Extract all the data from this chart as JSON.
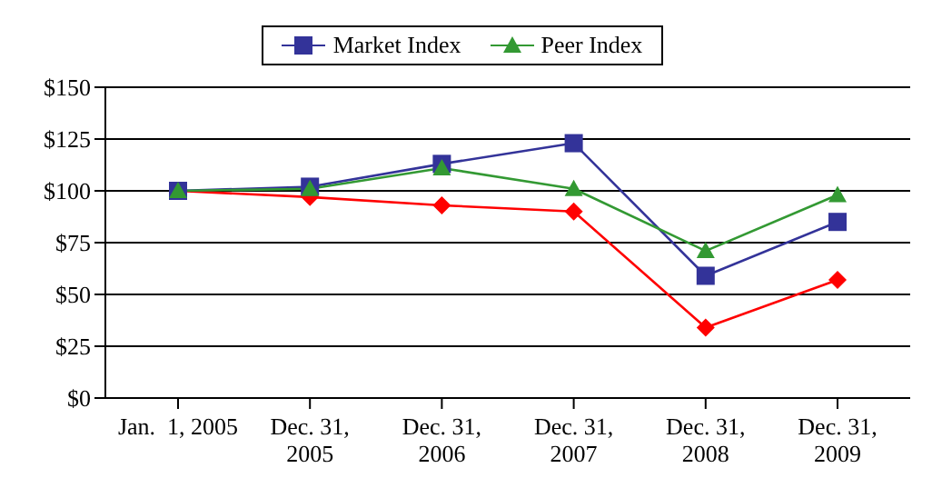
{
  "chart_data": {
    "type": "line",
    "categories": [
      "Jan.  1, 2005",
      "Dec. 31,\n2005",
      "Dec. 31,\n2006",
      "Dec. 31,\n2007",
      "Dec. 31,\n2008",
      "Dec. 31,\n2009"
    ],
    "series": [
      {
        "color": "#ff0000",
        "marker": "diamond",
        "values": [
          100,
          97,
          93,
          90,
          34,
          57
        ]
      },
      {
        "name": "Market Index",
        "color": "#333399",
        "marker": "square",
        "values": [
          100,
          102,
          113,
          123,
          59,
          85
        ]
      },
      {
        "name": "Peer Index",
        "color": "#339933",
        "marker": "triangle",
        "values": [
          100,
          101,
          111,
          101,
          71,
          98
        ]
      }
    ],
    "ylim": [
      0,
      150
    ],
    "yticks": [
      {
        "value": 0,
        "label": "$0"
      },
      {
        "value": 25,
        "label": "$25"
      },
      {
        "value": 50,
        "label": "$50"
      },
      {
        "value": 75,
        "label": "$75"
      },
      {
        "value": 100,
        "label": "$100"
      },
      {
        "value": 125,
        "label": "$125"
      },
      {
        "value": 150,
        "label": "$150"
      }
    ],
    "grid": "y",
    "legend": "top"
  }
}
